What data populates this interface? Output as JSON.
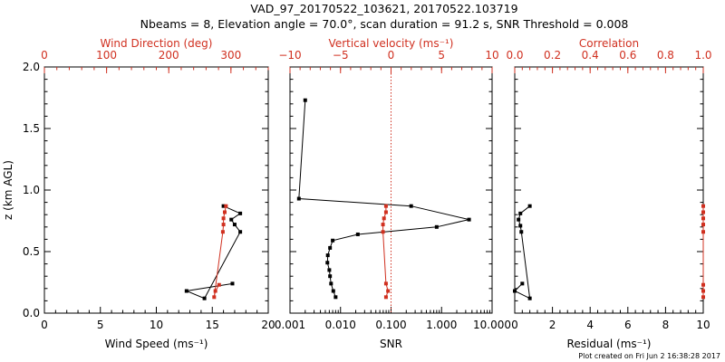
{
  "header": {
    "title_line1": "VAD_97_20170522_103621, 20170522.103719",
    "title_line2": "Nbeams = 8, Elevation angle = 70.0°, scan duration = 91.2 s, SNR Threshold = 0.008"
  },
  "footer": {
    "text": "Plot created on Fri Jun  2 16:38:28 2017"
  },
  "colors": {
    "black": "#000000",
    "red": "#d03020"
  },
  "chart_data": [
    {
      "type": "line",
      "id": "panel1",
      "xlabel": "Wind Speed (ms⁻¹)",
      "xlim": [
        0,
        20
      ],
      "xticks": [
        "0",
        "5",
        "10",
        "15",
        "20"
      ],
      "ylabel": "z (km AGL)",
      "ylim": [
        0,
        2.0
      ],
      "yticks": [
        "0.0",
        "0.5",
        "1.0",
        "1.5",
        "2.0"
      ],
      "x2label": "Wind Direction (deg)",
      "x2lim": [
        0,
        360
      ],
      "x2ticks": [
        "0",
        "100",
        "200",
        "300"
      ],
      "series": [
        {
          "axis": "bottom",
          "color": "#000000",
          "points": [
            [
              16.0,
              0.87
            ],
            [
              17.5,
              0.81
            ],
            [
              16.7,
              0.76
            ],
            [
              17.0,
              0.72
            ],
            [
              17.5,
              0.66
            ],
            [
              14.3,
              0.12
            ],
            [
              12.7,
              0.18
            ],
            [
              16.8,
              0.24
            ]
          ]
        },
        {
          "axis": "top",
          "color": "#d03020",
          "points": [
            [
              292,
              0.87
            ],
            [
              290,
              0.82
            ],
            [
              288,
              0.77
            ],
            [
              288,
              0.72
            ],
            [
              287,
              0.66
            ],
            [
              273,
              0.13
            ],
            [
              275,
              0.18
            ],
            [
              281,
              0.23
            ]
          ]
        }
      ]
    },
    {
      "type": "line",
      "id": "panel2",
      "xlabel": "SNR",
      "xscale": "log",
      "xlim": [
        0.001,
        10.0
      ],
      "xticks": [
        "0.001",
        "0.010",
        "0.100",
        "1.000",
        "10.000"
      ],
      "ylim": [
        0,
        2.0
      ],
      "x2label": "Vertical velocity (ms⁻¹)",
      "x2lim": [
        -10,
        10
      ],
      "x2ticks": [
        "−10",
        "−5",
        "0",
        "5",
        "10"
      ],
      "series": [
        {
          "axis": "bottom",
          "color": "#000000",
          "points": [
            [
              0.002,
              1.73
            ],
            [
              0.0015,
              0.93
            ],
            [
              0.25,
              0.87
            ],
            [
              3.5,
              0.76
            ],
            [
              0.8,
              0.7
            ],
            [
              0.022,
              0.64
            ],
            [
              0.007,
              0.59
            ],
            [
              0.0062,
              0.53
            ],
            [
              0.0056,
              0.47
            ],
            [
              0.0055,
              0.41
            ],
            [
              0.006,
              0.35
            ],
            [
              0.0062,
              0.3
            ],
            [
              0.0065,
              0.24
            ],
            [
              0.0072,
              0.18
            ],
            [
              0.008,
              0.13
            ]
          ]
        },
        {
          "axis": "top",
          "color": "#d03020",
          "points": [
            [
              -0.5,
              0.87
            ],
            [
              -0.5,
              0.82
            ],
            [
              -0.7,
              0.77
            ],
            [
              -0.8,
              0.72
            ],
            [
              -0.8,
              0.66
            ],
            [
              -0.5,
              0.24
            ],
            [
              -0.3,
              0.18
            ],
            [
              -0.5,
              0.13
            ]
          ]
        },
        {
          "axis": "top",
          "type": "reference-line",
          "style": "dotted",
          "color": "#d03020",
          "value": 0
        }
      ]
    },
    {
      "type": "line",
      "id": "panel3",
      "xlabel": "Residual (ms⁻¹)",
      "xlim": [
        0,
        10
      ],
      "xticks": [
        "0",
        "2",
        "4",
        "6",
        "8",
        "10"
      ],
      "ylim": [
        0,
        2.0
      ],
      "x2label": "Correlation",
      "x2lim": [
        0.0,
        1.0
      ],
      "x2ticks": [
        "0.0",
        "0.2",
        "0.4",
        "0.6",
        "0.8",
        "1.0"
      ],
      "series": [
        {
          "axis": "bottom",
          "color": "#000000",
          "points": [
            [
              0.8,
              0.87
            ],
            [
              0.3,
              0.81
            ],
            [
              0.2,
              0.76
            ],
            [
              0.3,
              0.71
            ],
            [
              0.35,
              0.66
            ],
            [
              0.8,
              0.12
            ],
            [
              0.0,
              0.18
            ],
            [
              0.4,
              0.24
            ]
          ]
        },
        {
          "axis": "top",
          "color": "#d03020",
          "points": [
            [
              1.0,
              0.87
            ],
            [
              1.0,
              0.82
            ],
            [
              1.0,
              0.77
            ],
            [
              1.0,
              0.72
            ],
            [
              1.0,
              0.66
            ],
            [
              1.0,
              0.13
            ],
            [
              1.0,
              0.18
            ],
            [
              1.0,
              0.23
            ]
          ]
        }
      ]
    }
  ]
}
